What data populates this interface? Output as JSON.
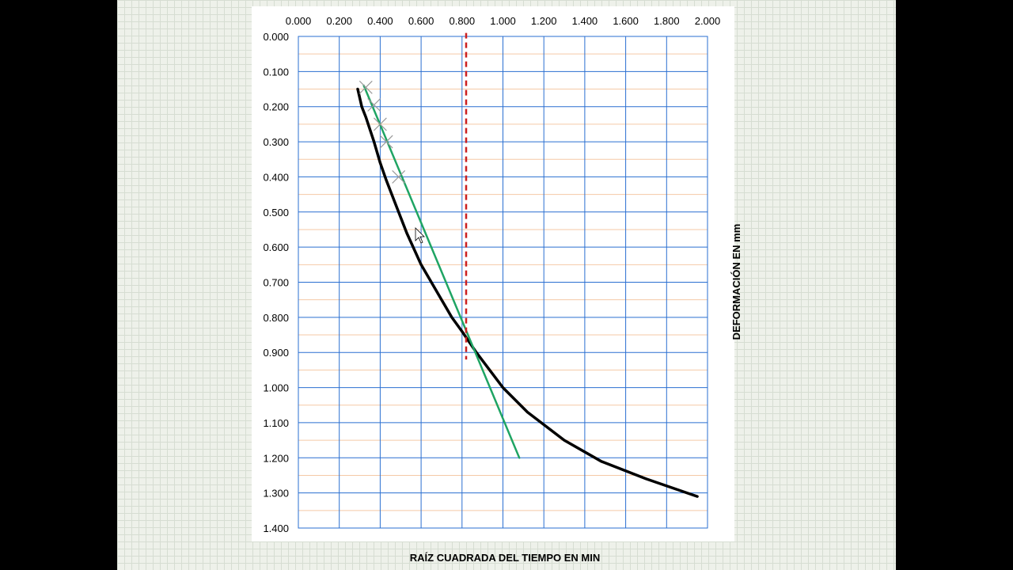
{
  "chart_data": {
    "type": "line",
    "title": "",
    "xlabel": "RAÍZ CUADRADA  DEL TIEMPO EN MIN",
    "ylabel": "DEFORMACIÓN  EN mm",
    "x_axis_position": "top",
    "y_axis_inverted": true,
    "xlim": [
      0,
      2.0
    ],
    "ylim": [
      0,
      1.4
    ],
    "x_ticks": [
      "0.000",
      "0.200",
      "0.400",
      "0.600",
      "0.800",
      "1.000",
      "1.200",
      "1.400",
      "1.600",
      "1.800",
      "2.000"
    ],
    "y_ticks": [
      "0.000",
      "0.100",
      "0.200",
      "0.300",
      "0.400",
      "0.500",
      "0.600",
      "0.700",
      "0.800",
      "0.900",
      "1.000",
      "1.100",
      "1.200",
      "1.300",
      "1.400"
    ],
    "grid": true,
    "series": [
      {
        "color": "#000000",
        "x": [
          0.29,
          0.31,
          0.33,
          0.37,
          0.4,
          0.43,
          0.47,
          0.53,
          0.6,
          0.7,
          0.75,
          0.8,
          0.87,
          1.0,
          1.12,
          1.3,
          1.48,
          1.7,
          1.95
        ],
        "y": [
          0.15,
          0.2,
          0.23,
          0.3,
          0.36,
          0.41,
          0.47,
          0.56,
          0.65,
          0.75,
          0.8,
          0.84,
          0.9,
          1.0,
          1.07,
          1.15,
          1.21,
          1.26,
          1.31
        ]
      },
      {
        "color": "#1fa463",
        "x": [
          0.32,
          1.08
        ],
        "y": [
          0.14,
          1.2
        ]
      },
      {
        "color": "#cc1f1f",
        "dashed": true,
        "x": [
          0.82,
          0.82
        ],
        "y": [
          -0.01,
          0.92
        ]
      }
    ],
    "markers": {
      "color": "#9a9a9a",
      "x": [
        0.33,
        0.37,
        0.4,
        0.43,
        0.49
      ],
      "y": [
        0.145,
        0.195,
        0.25,
        0.3,
        0.4
      ]
    },
    "cursor": true
  }
}
